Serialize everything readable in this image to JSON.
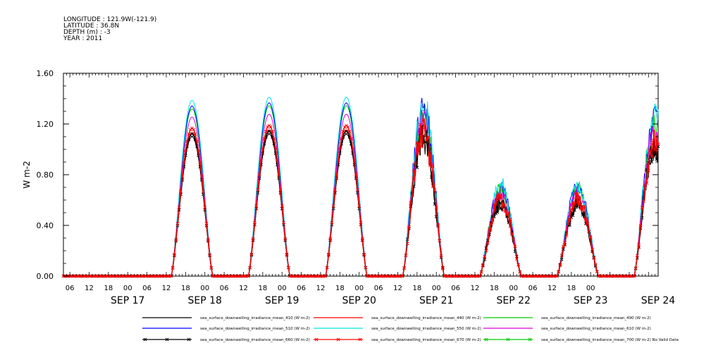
{
  "header": {
    "lines": [
      "LONGITUDE : 121.9W(-121.9)",
      "LATITUDE : 36.8N",
      "DEPTH (m) : -3",
      "YEAR : 2011"
    ]
  },
  "chart_data": {
    "type": "line",
    "ylabel": "W m-2",
    "ylim": [
      0,
      1.6
    ],
    "y_ticks": [
      "0.00",
      "0.40",
      "0.80",
      "1.20",
      "1.60"
    ],
    "x_range_hours_from_sep17_00": [
      -20,
      165
    ],
    "x_hour_ticks": [
      "06",
      "12",
      "18",
      "00",
      "06",
      "12",
      "18",
      "00",
      "06",
      "12",
      "18",
      "00",
      "06",
      "12",
      "18",
      "00",
      "06",
      "12",
      "18",
      "00",
      "06",
      "12",
      "18",
      "00",
      "06",
      "12",
      "18",
      "00"
    ],
    "x_day_labels": [
      "SEP 17",
      "SEP 18",
      "SEP 19",
      "SEP 20",
      "SEP 21",
      "SEP 22",
      "SEP 23",
      "SEP 24"
    ],
    "day_peaks": [
      {
        "day": "SEP 17",
        "peak_410": 1.1,
        "peak_ref": 1.4
      },
      {
        "day": "SEP 18",
        "peak_410": 1.12,
        "peak_ref": 1.42
      },
      {
        "day": "SEP 19",
        "peak_410": 1.12,
        "peak_ref": 1.41
      },
      {
        "day": "SEP 20",
        "peak_410": 1.07,
        "peak_ref": 1.32
      },
      {
        "day": "SEP 21",
        "peak_410": 0.57,
        "peak_ref": 0.78
      },
      {
        "day": "SEP 22",
        "peak_410": 0.57,
        "peak_ref": 0.78
      },
      {
        "day": "SEP 23",
        "peak_410": 1.0,
        "peak_ref": 1.3
      }
    ],
    "series": [
      {
        "name": "sea_surface_downwelling_irradiance_mean_410 (W m-2)",
        "color": "#000000",
        "scale": 1.0,
        "marker": "none"
      },
      {
        "name": "sea_surface_downwelling_irradiance_mean_440 (W m-2)",
        "color": "#ff0000",
        "scale": 1.03,
        "marker": "none"
      },
      {
        "name": "sea_surface_downwelling_irradiance_mean_490 (W m-2)",
        "color": "#00cc00",
        "scale": 1.2,
        "marker": "none"
      },
      {
        "name": "sea_surface_downwelling_irradiance_mean_510 (W m-2)",
        "color": "#0000ff",
        "scale": 1.22,
        "marker": "none"
      },
      {
        "name": "sea_surface_downwelling_irradiance_mean_550 (W m-2)",
        "color": "#00e5e5",
        "scale": 1.26,
        "marker": "none"
      },
      {
        "name": "sea_surface_downwelling_irradiance_mean_610 (W m-2)",
        "color": "#e000e0",
        "scale": 1.14,
        "marker": "none"
      },
      {
        "name": "sea_surface_downwelling_irradiance_mean_660 (W m-2)",
        "color": "#000000",
        "scale": 1.02,
        "marker": "x"
      },
      {
        "name": "sea_surface_downwelling_irradiance_mean_670 (W m-2)",
        "color": "#ff0000",
        "scale": 1.06,
        "marker": "x"
      },
      {
        "name": "sea_surface_downwelling_irradiance_mean_700 (W m-2) No Valid Data",
        "color": "#00cc00",
        "scale": 0,
        "marker": "x"
      }
    ]
  }
}
